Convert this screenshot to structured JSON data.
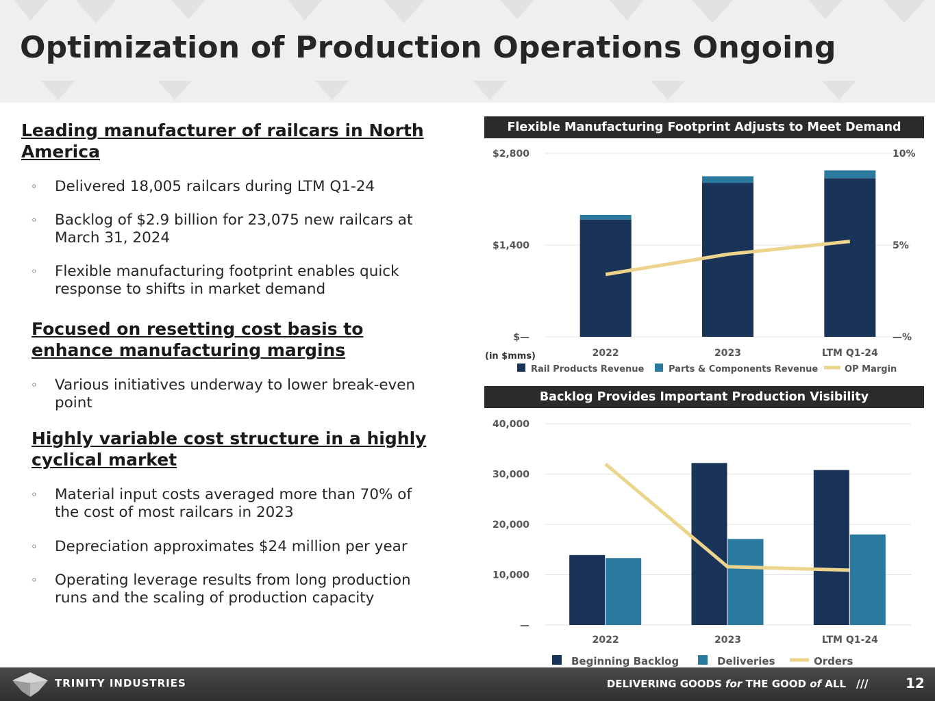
{
  "header": {
    "title": "Optimization of Production Operations Ongoing"
  },
  "sections": [
    {
      "heading_line1": "Leading manufacturer of railcars in North ",
      "heading_line2": "America",
      "bullets": [
        {
          "line1": "Delivered 18,005 railcars during LTM Q1-24",
          "line2": ""
        },
        {
          "line1": "Backlog of $2.9 billion for 23,075 new railcars at",
          "line2": "March 31, 2024"
        },
        {
          "line1": "Flexible manufacturing footprint enables quick",
          "line2": "response to shifts in market demand"
        }
      ]
    },
    {
      "heading_line1": "Focused on resetting cost basis to ",
      "heading_line2": "enhance manufacturing margins",
      "bullets": [
        {
          "line1": "Various initiatives underway to lower break-even",
          "line2": "point"
        }
      ]
    },
    {
      "heading_line1": "Highly variable cost structure in a highly ",
      "heading_line2": "cyclical market",
      "bullets": [
        {
          "line1": "Material input costs averaged more than 70% of",
          "line2": "the cost of most railcars in 2023"
        },
        {
          "line1": "Depreciation approximates $24 million per year",
          "line2": ""
        },
        {
          "line1": "Operating leverage results from long production",
          "line2": "runs and the scaling of production capacity"
        }
      ]
    }
  ],
  "bullet_marker": "◦",
  "chart_data": [
    {
      "type": "bar",
      "banner": "Flexible Manufacturing Footprint Adjusts to Meet Demand",
      "categories": [
        "2022",
        "2023",
        "LTM Q1-24"
      ],
      "stacked": true,
      "series": [
        {
          "name": "Rail Products Revenue",
          "values": [
            1790,
            2350,
            2420
          ],
          "color": "#1a3358"
        },
        {
          "name": "Parts & Components Revenue",
          "values": [
            70,
            100,
            120
          ],
          "color": "#2a7aa0"
        }
      ],
      "line_series": {
        "name": "OP Margin",
        "axis": "right",
        "values": [
          3.4,
          4.5,
          5.2
        ],
        "color": "#ecd48c"
      },
      "ylim": [
        0,
        2800
      ],
      "y_ticks": [
        {
          "value": 2800,
          "label": "$2,800"
        },
        {
          "value": 1400,
          "label": "$1,400"
        },
        {
          "value": 0,
          "label": "$—"
        }
      ],
      "y2lim": [
        0,
        10
      ],
      "y2_ticks": [
        {
          "value": 10,
          "label": "10%"
        },
        {
          "value": 5,
          "label": "5%"
        },
        {
          "value": 0,
          "label": "—%"
        }
      ],
      "unit_note": "(in $mms)",
      "legend": [
        "Rail Products Revenue",
        "Parts & Components Revenue",
        "OP Margin"
      ],
      "legend_position": "bottom"
    },
    {
      "type": "bar",
      "banner": "Backlog Provides Important Production Visibility",
      "categories": [
        "2022",
        "2023",
        "LTM Q1-24"
      ],
      "series": [
        {
          "name": "Beginning Backlog",
          "values": [
            13900,
            32200,
            30800
          ],
          "color": "#1a3358"
        },
        {
          "name": "Deliveries",
          "values": [
            13300,
            17100,
            18000
          ],
          "color": "#2a7aa0"
        }
      ],
      "line_series": {
        "name": "Orders",
        "values": [
          32000,
          11600,
          10900
        ],
        "color": "#ecd48c"
      },
      "ylim": [
        0,
        40000
      ],
      "y_ticks": [
        {
          "value": 40000,
          "label": "40,000"
        },
        {
          "value": 30000,
          "label": "30,000"
        },
        {
          "value": 20000,
          "label": "20,000"
        },
        {
          "value": 10000,
          "label": "10,000"
        },
        {
          "value": 0,
          "label": "—"
        }
      ],
      "legend": [
        "Beginning Backlog",
        "Deliveries",
        "Orders"
      ],
      "legend_position": "bottom"
    }
  ],
  "footer": {
    "company": "TRINITY INDUSTRIES",
    "tagline_a": "DELIVERING GOODS ",
    "tagline_b": "for",
    "tagline_c": " THE GOOD ",
    "tagline_d": "of",
    "tagline_e": " ALL",
    "slashes": "///",
    "page_number": "12"
  }
}
